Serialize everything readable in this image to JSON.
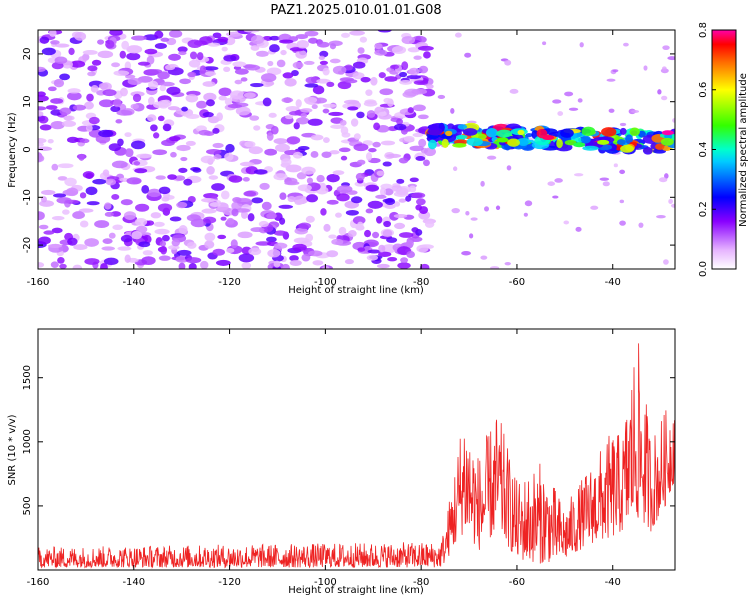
{
  "title": "PAZ1.2025.010.01.01.G08",
  "chart_data": [
    {
      "type": "heatmap",
      "xlabel": "Height of straight line (km)",
      "ylabel": "Frequency (Hz)",
      "xlim": [
        -160,
        -27
      ],
      "ylim": [
        -25,
        25
      ],
      "xticks": [
        -160,
        -140,
        -120,
        -100,
        -80,
        -60,
        -40
      ],
      "yticks": [
        -20,
        -10,
        0,
        10,
        20
      ],
      "colorbar": {
        "label": "Normalized spectral amplitude",
        "range": [
          0,
          0.8
        ],
        "ticks": [
          "0.0",
          "0.2",
          "0.4",
          "0.6",
          "0.8"
        ]
      },
      "regions": [
        {
          "name": "noise",
          "x": [
            -160,
            -78
          ],
          "freq": [
            -25,
            25
          ],
          "amplitude": [
            0.05,
            0.2
          ]
        },
        {
          "name": "signal",
          "x": [
            -78,
            -27
          ],
          "freq_at_start": 5,
          "freq_at_end": 3.5,
          "amplitude": [
            0.2,
            0.8
          ]
        }
      ]
    },
    {
      "type": "line",
      "xlabel": "Height of straight line (km)",
      "ylabel": "SNR (10 * v/v)",
      "xlim": [
        -160,
        -27
      ],
      "ylim": [
        0,
        1880
      ],
      "xticks": [
        -160,
        -140,
        -120,
        -100,
        -80,
        -60,
        -40
      ],
      "yticks": [
        500,
        1000,
        1500
      ],
      "color": "#ee2222",
      "envelope": [
        {
          "x": -160,
          "low": 20,
          "high": 180
        },
        {
          "x": -76,
          "low": 20,
          "high": 220
        },
        {
          "x": -75,
          "low": 60,
          "high": 350
        },
        {
          "x": -71,
          "low": 300,
          "high": 1300
        },
        {
          "x": -68,
          "low": 150,
          "high": 900
        },
        {
          "x": -64,
          "low": 300,
          "high": 1250
        },
        {
          "x": -60,
          "low": 80,
          "high": 700
        },
        {
          "x": -55,
          "low": 50,
          "high": 850
        },
        {
          "x": -50,
          "low": 80,
          "high": 500
        },
        {
          "x": -45,
          "low": 200,
          "high": 800
        },
        {
          "x": -40,
          "low": 250,
          "high": 1100
        },
        {
          "x": -38,
          "low": 300,
          "high": 1050
        },
        {
          "x": -35,
          "low": 400,
          "high": 1880
        },
        {
          "x": -32,
          "low": 300,
          "high": 1050
        },
        {
          "x": -29,
          "low": 500,
          "high": 1250
        },
        {
          "x": -27,
          "low": 700,
          "high": 1400
        }
      ]
    }
  ]
}
